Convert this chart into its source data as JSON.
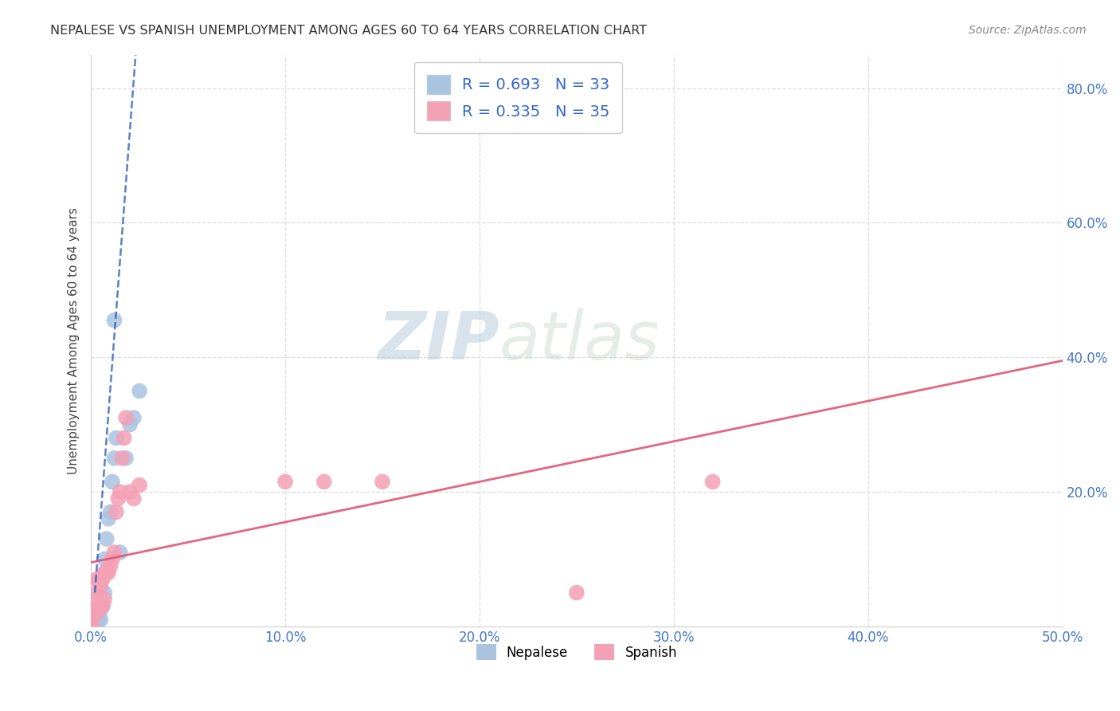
{
  "title": "NEPALESE VS SPANISH UNEMPLOYMENT AMONG AGES 60 TO 64 YEARS CORRELATION CHART",
  "source": "Source: ZipAtlas.com",
  "ylabel": "Unemployment Among Ages 60 to 64 years",
  "xlim": [
    0,
    0.5
  ],
  "ylim": [
    0,
    0.85
  ],
  "xticks": [
    0.0,
    0.1,
    0.2,
    0.3,
    0.4,
    0.5
  ],
  "yticks": [
    0.0,
    0.2,
    0.4,
    0.6,
    0.8
  ],
  "xticklabels": [
    "0.0%",
    "10.0%",
    "20.0%",
    "30.0%",
    "40.0%",
    "50.0%"
  ],
  "yticklabels": [
    "",
    "20.0%",
    "40.0%",
    "60.0%",
    "80.0%"
  ],
  "nepalese_R": 0.693,
  "nepalese_N": 33,
  "spanish_R": 0.335,
  "spanish_N": 35,
  "nepalese_color": "#aac4e0",
  "nepalese_line_color": "#2255bb",
  "spanish_color": "#f4a0b5",
  "spanish_line_color": "#e05575",
  "background_color": "#ffffff",
  "grid_color": "#dddddd",
  "nepalese_x": [
    0.0,
    0.0,
    0.0,
    0.001,
    0.001,
    0.001,
    0.001,
    0.002,
    0.002,
    0.002,
    0.002,
    0.003,
    0.003,
    0.003,
    0.004,
    0.004,
    0.005,
    0.005,
    0.006,
    0.007,
    0.007,
    0.008,
    0.009,
    0.01,
    0.011,
    0.012,
    0.013,
    0.015,
    0.018,
    0.02,
    0.022,
    0.025,
    0.012
  ],
  "nepalese_y": [
    0.0,
    0.0,
    0.005,
    0.0,
    0.005,
    0.01,
    0.015,
    0.0,
    0.005,
    0.01,
    0.015,
    0.005,
    0.01,
    0.015,
    0.01,
    0.02,
    0.01,
    0.025,
    0.03,
    0.05,
    0.1,
    0.13,
    0.16,
    0.17,
    0.215,
    0.25,
    0.28,
    0.11,
    0.25,
    0.3,
    0.31,
    0.35,
    0.455
  ],
  "spanish_x": [
    0.0,
    0.001,
    0.001,
    0.002,
    0.002,
    0.003,
    0.003,
    0.003,
    0.004,
    0.004,
    0.005,
    0.005,
    0.006,
    0.006,
    0.007,
    0.007,
    0.008,
    0.009,
    0.01,
    0.011,
    0.012,
    0.013,
    0.014,
    0.015,
    0.016,
    0.017,
    0.018,
    0.02,
    0.022,
    0.025,
    0.1,
    0.12,
    0.15,
    0.25,
    0.32
  ],
  "spanish_y": [
    0.0,
    0.0,
    0.02,
    0.02,
    0.04,
    0.02,
    0.05,
    0.07,
    0.03,
    0.07,
    0.03,
    0.06,
    0.03,
    0.07,
    0.04,
    0.08,
    0.08,
    0.08,
    0.09,
    0.1,
    0.11,
    0.17,
    0.19,
    0.2,
    0.25,
    0.28,
    0.31,
    0.2,
    0.19,
    0.21,
    0.215,
    0.215,
    0.215,
    0.05,
    0.215
  ],
  "spa_line_x0": 0.0,
  "spa_line_y0": 0.095,
  "spa_line_x1": 0.5,
  "spa_line_y1": 0.395,
  "nep_line_x0": 0.002,
  "nep_line_y0": 0.05,
  "nep_line_x1": 0.023,
  "nep_line_y1": 0.85
}
